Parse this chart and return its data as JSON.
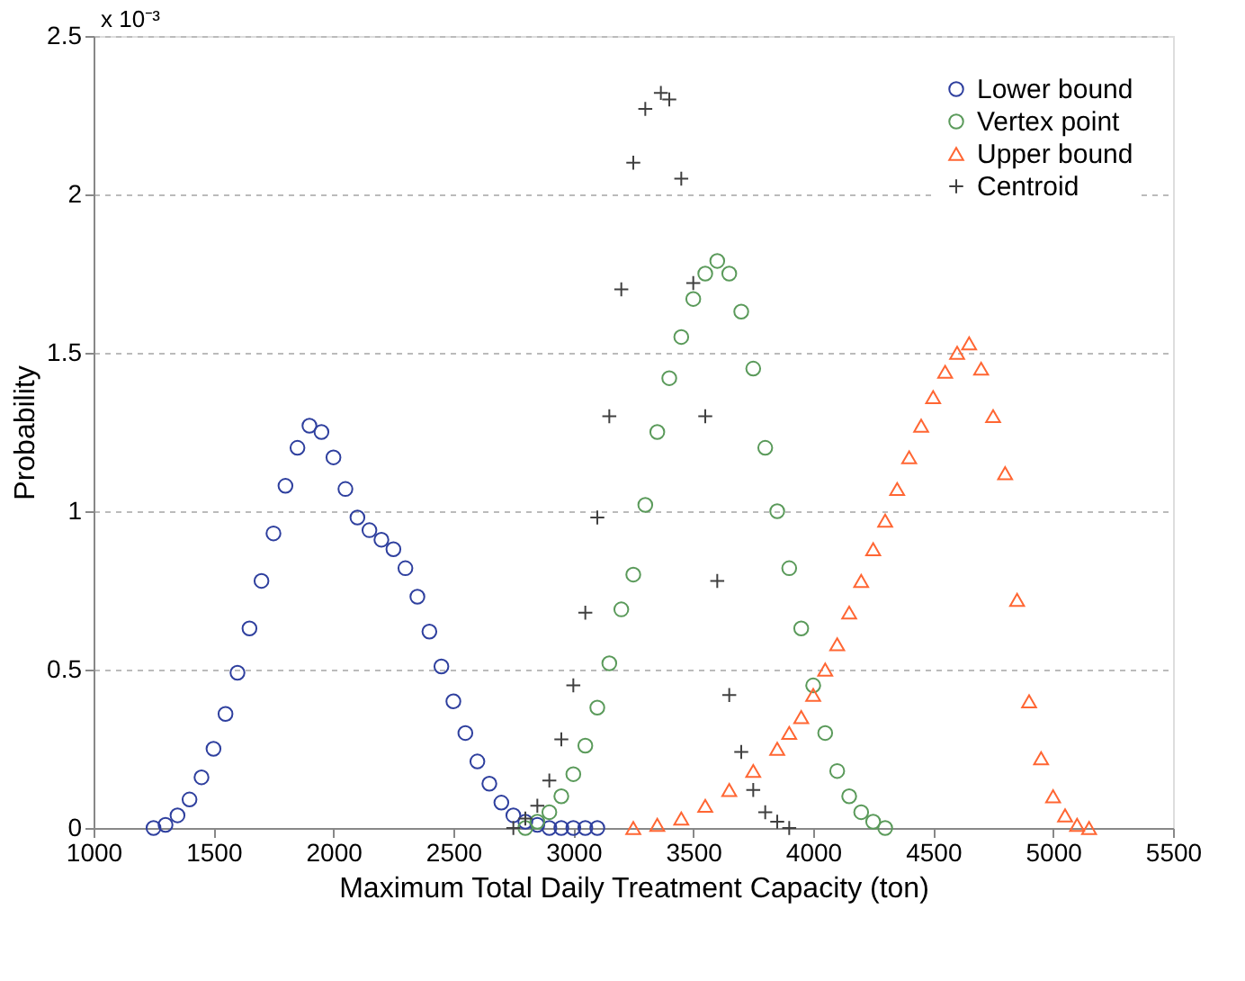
{
  "chart_data": {
    "type": "scatter",
    "xlabel": "Maximum Total Daily Treatment Capacity (ton)",
    "ylabel": "Probability",
    "annotations": [
      "x 10⁻³"
    ],
    "xlim": [
      1000,
      5500
    ],
    "xticks": [
      1000,
      1500,
      2000,
      2500,
      3000,
      3500,
      4000,
      4500,
      5000,
      5500
    ],
    "ylim": [
      0,
      2.5
    ],
    "yticks": [
      0,
      0.5,
      1,
      1.5,
      2,
      2.5
    ],
    "grid": "y",
    "legend": "top right",
    "series": [
      {
        "name": "Lower bound",
        "color": "#2e3f9e",
        "marker": "circle",
        "x": [
          1250,
          1300,
          1350,
          1400,
          1450,
          1500,
          1550,
          1600,
          1650,
          1700,
          1750,
          1800,
          1850,
          1900,
          1950,
          2000,
          2050,
          2100,
          2150,
          2200,
          2250,
          2300,
          2350,
          2400,
          2450,
          2500,
          2550,
          2600,
          2650,
          2700,
          2750,
          2800,
          2850,
          2900,
          2950,
          3000,
          3050,
          3100
        ],
        "values": [
          0,
          0.01,
          0.04,
          0.09,
          0.16,
          0.25,
          0.36,
          0.49,
          0.63,
          0.78,
          0.93,
          1.08,
          1.2,
          1.27,
          1.25,
          1.17,
          1.07,
          0.98,
          0.94,
          0.91,
          0.88,
          0.82,
          0.73,
          0.62,
          0.51,
          0.4,
          0.3,
          0.21,
          0.14,
          0.08,
          0.04,
          0.02,
          0.01,
          0,
          0,
          0,
          0,
          0
        ]
      },
      {
        "name": "Vertex point",
        "color": "#5a9a5a",
        "marker": "circle",
        "x": [
          2800,
          2850,
          2900,
          2950,
          3000,
          3050,
          3100,
          3150,
          3200,
          3250,
          3300,
          3350,
          3400,
          3450,
          3500,
          3550,
          3600,
          3650,
          3700,
          3750,
          3800,
          3850,
          3900,
          3950,
          4000,
          4050,
          4100,
          4150,
          4200,
          4250,
          4300
        ],
        "values": [
          0,
          0.02,
          0.05,
          0.1,
          0.17,
          0.26,
          0.38,
          0.52,
          0.69,
          0.8,
          1.02,
          1.25,
          1.42,
          1.55,
          1.67,
          1.75,
          1.79,
          1.75,
          1.63,
          1.45,
          1.2,
          1.0,
          0.82,
          0.63,
          0.45,
          0.3,
          0.18,
          0.1,
          0.05,
          0.02,
          0
        ]
      },
      {
        "name": "Upper bound",
        "color": "#ff6633",
        "marker": "triangle",
        "x": [
          3250,
          3350,
          3450,
          3550,
          3650,
          3750,
          3850,
          3900,
          3950,
          4000,
          4050,
          4100,
          4150,
          4200,
          4250,
          4300,
          4350,
          4400,
          4450,
          4500,
          4550,
          4600,
          4650,
          4700,
          4750,
          4800,
          4850,
          4900,
          4950,
          5000,
          5050,
          5100,
          5150
        ],
        "values": [
          0,
          0.01,
          0.03,
          0.07,
          0.12,
          0.18,
          0.25,
          0.3,
          0.35,
          0.42,
          0.5,
          0.58,
          0.68,
          0.78,
          0.88,
          0.97,
          1.07,
          1.17,
          1.27,
          1.36,
          1.44,
          1.5,
          1.53,
          1.45,
          1.3,
          1.12,
          0.72,
          0.4,
          0.22,
          0.1,
          0.04,
          0.01,
          0
        ]
      },
      {
        "name": "Centroid",
        "color": "#404040",
        "marker": "cross",
        "x": [
          2750,
          2800,
          2850,
          2900,
          2950,
          3000,
          3050,
          3100,
          3150,
          3200,
          3250,
          3300,
          3365,
          3400,
          3450,
          3500,
          3550,
          3600,
          3650,
          3700,
          3750,
          3800,
          3850,
          3900
        ],
        "values": [
          0,
          0.03,
          0.07,
          0.15,
          0.28,
          0.45,
          0.68,
          0.98,
          1.3,
          1.7,
          2.1,
          2.27,
          2.32,
          2.3,
          2.05,
          1.72,
          1.3,
          0.78,
          0.42,
          0.24,
          0.12,
          0.05,
          0.02,
          0
        ]
      }
    ]
  }
}
